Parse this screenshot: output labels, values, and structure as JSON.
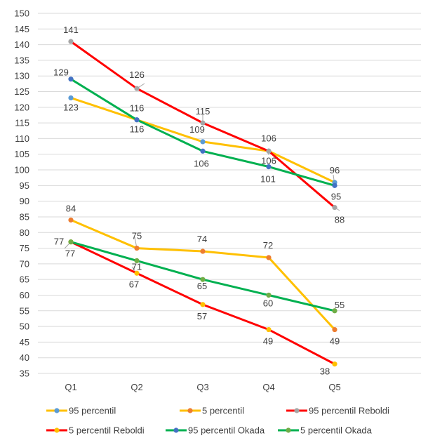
{
  "chart_data": {
    "type": "line",
    "title": "",
    "xlabel": "",
    "ylabel": "",
    "categories": [
      "Q1",
      "Q2",
      "Q3",
      "Q4",
      "Q5"
    ],
    "ylim": [
      35,
      150
    ],
    "ytick_step": 5,
    "grid": true,
    "legend_position": "bottom",
    "series": [
      {
        "name": "95 percentil",
        "line_color": "#FFC000",
        "marker_color": "#5B9BD5",
        "values": [
          123,
          116,
          109,
          106,
          96
        ],
        "labels": [
          "123",
          "116",
          "109",
          "106",
          "96"
        ]
      },
      {
        "name": "5 percentil",
        "line_color": "#FFC000",
        "marker_color": "#ED7D31",
        "values": [
          84,
          75,
          74,
          72,
          49
        ],
        "labels": [
          "84",
          "75",
          "74",
          "72",
          "49"
        ]
      },
      {
        "name": "95 percentil Reboldi",
        "line_color": "#FF0000",
        "marker_color": "#A5A5A5",
        "values": [
          141,
          126,
          115,
          106,
          88
        ],
        "labels": [
          "141",
          "126",
          "115",
          "106",
          "88"
        ]
      },
      {
        "name": "5 percentil Reboldi",
        "line_color": "#FF0000",
        "marker_color": "#FFC000",
        "values": [
          77,
          67,
          57,
          49,
          38
        ],
        "labels": [
          "77",
          "67",
          "57",
          "49",
          "38"
        ]
      },
      {
        "name": "95 percentil Okada",
        "line_color": "#00B050",
        "marker_color": "#4472C4",
        "values": [
          129,
          116,
          106,
          101,
          95
        ],
        "labels": [
          "129",
          "116",
          "106",
          "101",
          "95"
        ]
      },
      {
        "name": "5 percentil Okada",
        "line_color": "#00B050",
        "marker_color": "#70AD47",
        "values": [
          77,
          71,
          65,
          60,
          55
        ],
        "labels": [
          "77",
          "71",
          "65",
          "60",
          "55"
        ]
      }
    ]
  }
}
